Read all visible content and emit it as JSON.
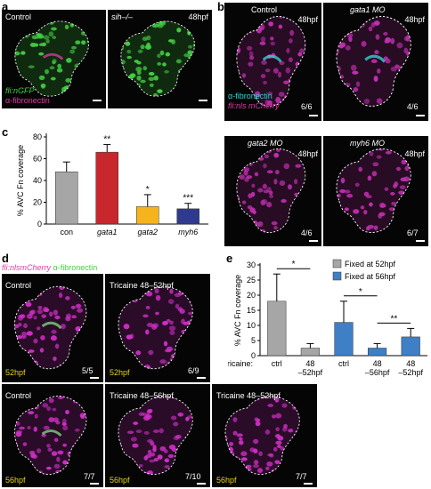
{
  "panels": {
    "a": {
      "letter": "a",
      "img1_label": "Control",
      "img2_label": "sih–/–",
      "img2_stage": "48hpf",
      "legend_line1": "fli:nGFP",
      "legend_line2": "α-fibronectin"
    },
    "b": {
      "letter": "b",
      "img1_label": "Control",
      "img1_stage": "48hpf",
      "img1_ratio": "6/6",
      "img2_label": "gata1 MO",
      "img2_stage": "48hpf",
      "img2_ratio": "4/6",
      "img3_label": "gata2 MO",
      "img3_stage": "48hpf",
      "img3_ratio": "4/6",
      "img4_label": "myh6 MO",
      "img4_stage": "48hpf",
      "img4_ratio": "6/7",
      "legend_line1": "α-fibronectin",
      "legend_line2": "fli:nls mCherry"
    },
    "d": {
      "letter": "d",
      "header_part1": "fli:nlsmCherry",
      "header_part2": "α-fibronectin",
      "img1_label": "Control",
      "img1_stage": "52hpf",
      "img1_ratio": "5/5",
      "img2_label": "Tricaine 48–52hpf",
      "img2_stage": "52hpf",
      "img2_ratio": "6/9",
      "img3_label": "Control",
      "img3_stage": "56hpf",
      "img3_ratio": "7/7",
      "img4_label": "Tricaine 48–56hpf",
      "img4_stage": "56hpf",
      "img4_ratio": "7/10",
      "img5_label": "Tricaine 48–52hpf",
      "img5_stage": "56hpf",
      "img5_ratio": "7/7"
    },
    "c": {
      "letter": "c"
    },
    "e": {
      "letter": "e"
    }
  },
  "chart_data": [
    {
      "type": "bar",
      "panel": "c",
      "ylabel": "% AVC Fn coverage",
      "ylim": [
        0,
        80
      ],
      "yticks": [
        0,
        20,
        40,
        60,
        80
      ],
      "categories": [
        "con",
        "gata1",
        "gata2",
        "myh6"
      ],
      "values": [
        48,
        66,
        16,
        14
      ],
      "errors": [
        9,
        7,
        11,
        5
      ],
      "colors": [
        "#a6a6a6",
        "#c8282d",
        "#f5b41e",
        "#2f3a8f"
      ],
      "significance": [
        "",
        "**",
        "*",
        "***"
      ],
      "grid": false
    },
    {
      "type": "bar",
      "panel": "e",
      "ylabel": "% AVC Fn coverage",
      "ylim": [
        0,
        30
      ],
      "yticks": [
        0,
        5,
        10,
        15,
        20,
        25,
        30
      ],
      "xlabel_prefix": "Tricaine:",
      "categories": [
        "ctrl",
        "48\n–52hpf",
        "ctrl",
        "48\n–56hpf",
        "48\n–52hpf"
      ],
      "values": [
        18,
        2.5,
        11,
        2.5,
        6.2
      ],
      "errors": [
        9,
        1.5,
        7,
        1.5,
        2.8
      ],
      "colors": [
        "#a6a6a6",
        "#a6a6a6",
        "#3e7fc6",
        "#3e7fc6",
        "#3e7fc6"
      ],
      "legend": [
        {
          "label": "Fixed at 52hpf",
          "color": "#a6a6a6"
        },
        {
          "label": "Fixed at 56hpf",
          "color": "#3e7fc6"
        }
      ],
      "legend_position": "top-right",
      "significance_brackets": [
        {
          "from": 0,
          "to": 1,
          "label": "*"
        },
        {
          "from": 2,
          "to": 3,
          "label": "*"
        },
        {
          "from": 3,
          "to": 4,
          "label": "**"
        }
      ],
      "grid": false
    }
  ]
}
